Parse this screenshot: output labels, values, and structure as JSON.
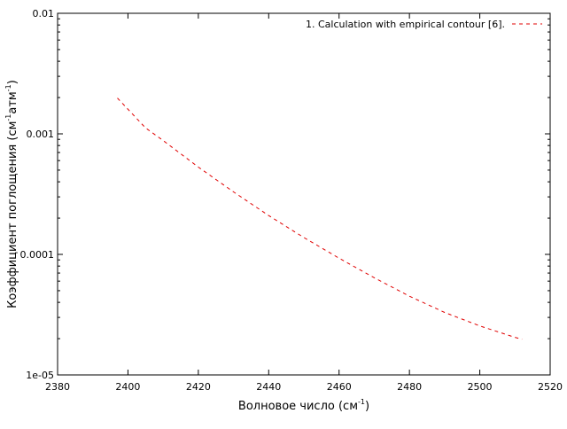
{
  "chart_data": {
    "type": "line",
    "xlabel": {
      "text": "Волновое число (см",
      "sup": "-1",
      "close": ")"
    },
    "ylabel": {
      "part1": "Коэффициент поглощения (см",
      "sup1": "-1",
      "part2": "атм",
      "sup2": "-1",
      "close": ")"
    },
    "xlim": [
      2380,
      2520
    ],
    "ylim": [
      1e-05,
      0.01
    ],
    "yscale": "log",
    "x_ticks": [
      2380,
      2400,
      2420,
      2440,
      2460,
      2480,
      2500,
      2520
    ],
    "x_tick_labels": [
      "2380",
      "2400",
      "2420",
      "2440",
      "2460",
      "2480",
      "2500",
      "2520"
    ],
    "y_ticks": [
      1e-05,
      0.0001,
      0.001,
      0.01
    ],
    "y_tick_labels": [
      "1e-05",
      "0.0001",
      "0.001",
      "0.01"
    ],
    "grid": false,
    "legend_position": "top-right",
    "series": [
      {
        "name": "1. Calculation with empirical contour [6].",
        "color": "#e00000",
        "dash": "dashed",
        "x": [
          2397,
          2400,
          2405,
          2410,
          2420,
          2430,
          2440,
          2450,
          2460,
          2470,
          2480,
          2490,
          2500,
          2510,
          2512
        ],
        "y": [
          0.00198,
          0.0016,
          0.00112,
          0.00088,
          0.00053,
          0.00033,
          0.00021,
          0.000138,
          9.3e-05,
          6.4e-05,
          4.5e-05,
          3.3e-05,
          2.55e-05,
          2.05e-05,
          1.98e-05
        ]
      }
    ]
  }
}
